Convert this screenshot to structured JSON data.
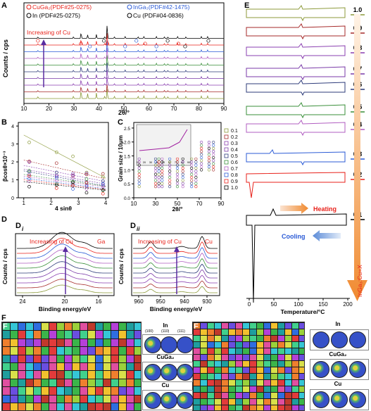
{
  "figure": {
    "panel_letters": {
      "A": "A",
      "B": "B",
      "C": "C",
      "D": "D",
      "E": "E",
      "F": "F"
    },
    "panel_D_sub": {
      "i": "i",
      "ii": "ii"
    }
  },
  "panelA": {
    "ylabel": "Counts / cps",
    "xlabel": "2θ/°",
    "xticks": [
      "10",
      "20",
      "30",
      "40",
      "50",
      "60",
      "70",
      "80",
      "90"
    ],
    "legend": [
      {
        "label": "CuGa₂(PDF#25-0275)",
        "color": "#e8221b",
        "symbol": "circle-open"
      },
      {
        "label": "InGa₃(PDF#42-1475)",
        "color": "#2b5bd6",
        "symbol": "circle-open"
      },
      {
        "label": "In (PDF#25-0275)",
        "color": "#000000",
        "symbol": "circle-open"
      },
      {
        "label": "Cu (PDF#04-0836)",
        "color": "#000000",
        "symbol": "circle-open"
      }
    ],
    "annotation": "Increasing of Cu",
    "annotation_color": "#e8221b"
  },
  "panelB": {
    "ylabel": "βcosθ×10⁻³",
    "xlabel": "4 sinθ",
    "xticks": [
      "1",
      "2",
      "3",
      "4"
    ],
    "yticks": [
      "0",
      "1",
      "2",
      "3",
      "4"
    ]
  },
  "panelC": {
    "ylabel": "Grain size / 10μm",
    "xlabel": "2θ/°",
    "xticks": [
      "10",
      "30",
      "50",
      "70",
      "90"
    ],
    "yticks": [
      "0.0",
      "0.5",
      "1.0",
      "1.5",
      "2.0",
      "2.5"
    ],
    "legend": [
      "0.1",
      "0.2",
      "0.3",
      "0.4",
      "0.5",
      "0.6",
      "0.7",
      "0.8",
      "0.9",
      "1.0"
    ],
    "inset_xticks": [
      "10",
      "20",
      "30",
      "40",
      "50",
      "60",
      "70",
      "80",
      "90"
    ]
  },
  "panelDi": {
    "ylabel": "Counts / cps",
    "xlabel": "Binding energy/eV",
    "xticks": [
      "24",
      "20",
      "16"
    ],
    "annotation": "Increasing of Cu",
    "element": "Ga"
  },
  "panelDii": {
    "xlabel": "Binding energy/eV",
    "xticks": [
      "960",
      "950",
      "940",
      "930"
    ],
    "annotation": "Increasing of Cu",
    "element": "Cu"
  },
  "panelE": {
    "xlabel": "Temperature/°C",
    "xticks": [
      "0",
      "50",
      "100",
      "150",
      "200"
    ],
    "ratios": [
      "1.0",
      "0.9",
      "0.8",
      "0.7",
      "0.6",
      "0.5",
      "0.4",
      "0.3",
      "0.2",
      "0.1"
    ],
    "heating": "Heating",
    "cooling": "Cooling",
    "ratio_label": "InGa₃:Cu=X"
  },
  "panelF": {
    "left_pf": [
      "In",
      "CuGa₂",
      "Cu"
    ],
    "right_pf": [
      "In",
      "CuGa₂",
      "Cu"
    ],
    "pf_indices": [
      "(100)",
      "(110)",
      "(111)"
    ]
  },
  "colors": {
    "accent_red": "#e8221b",
    "accent_blue": "#2b5bd6",
    "arrow_purple": "#5a2ca0",
    "arrow_orange": "#f08a30"
  }
}
